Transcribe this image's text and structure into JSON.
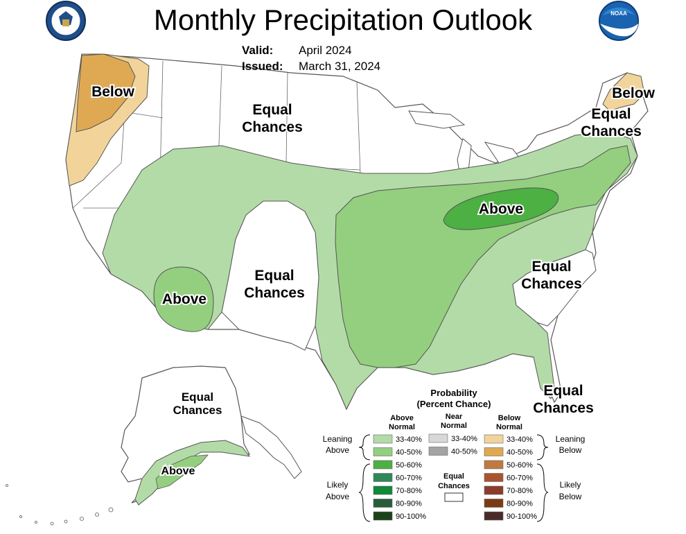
{
  "title": "Monthly Precipitation Outlook",
  "valid_label": "Valid:",
  "valid_value": "April 2024",
  "issued_label": "Issued:",
  "issued_value": "March 31, 2024",
  "logos": {
    "left": "department-of-commerce-seal",
    "right": "noaa-logo",
    "right_text": "NOAA"
  },
  "map_labels": {
    "pnw_below": "Below",
    "north_equal_1": "Equal",
    "north_equal_2": "Chances",
    "maine_below": "Below",
    "ne_equal_1": "Equal",
    "ne_equal_2": "Chances",
    "ohio_above": "Above",
    "sw_above": "Above",
    "central_equal_1": "Equal",
    "central_equal_2": "Chances",
    "se_equal_1": "Equal",
    "se_equal_2": "Chances",
    "fl_equal_1": "Equal",
    "fl_equal_2": "Chances",
    "ak_equal_1": "Equal",
    "ak_equal_2": "Chances",
    "ak_above": "Above"
  },
  "legend": {
    "title_1": "Probability",
    "title_2": "(Percent Chance)",
    "above_header_1": "Above",
    "above_header_2": "Normal",
    "near_header_1": "Near",
    "near_header_2": "Normal",
    "below_header_1": "Below",
    "below_header_2": "Normal",
    "leaning_above_1": "Leaning",
    "leaning_above_2": "Above",
    "leaning_below_1": "Leaning",
    "leaning_below_2": "Below",
    "likely_above_1": "Likely",
    "likely_above_2": "Above",
    "likely_below_1": "Likely",
    "likely_below_2": "Below",
    "equal_1": "Equal",
    "equal_2": "Chances",
    "above_rows": [
      {
        "label": "33-40%",
        "color": "#b3dba7"
      },
      {
        "label": "40-50%",
        "color": "#94cf7f"
      },
      {
        "label": "50-60%",
        "color": "#4cb043"
      },
      {
        "label": "60-70%",
        "color": "#2f8857"
      },
      {
        "label": "70-80%",
        "color": "#108939"
      },
      {
        "label": "80-90%",
        "color": "#285c3a"
      },
      {
        "label": "90-100%",
        "color": "#1b4118"
      }
    ],
    "near_rows": [
      {
        "label": "33-40%",
        "color": "#d8d8d8"
      },
      {
        "label": "40-50%",
        "color": "#a4a4a4"
      }
    ],
    "below_rows": [
      {
        "label": "33-40%",
        "color": "#f2d49b"
      },
      {
        "label": "40-50%",
        "color": "#dfa954"
      },
      {
        "label": "50-60%",
        "color": "#bf7a3f"
      },
      {
        "label": "60-70%",
        "color": "#a8552f"
      },
      {
        "label": "70-80%",
        "color": "#8c3c2c"
      },
      {
        "label": "80-90%",
        "color": "#7a3b12"
      },
      {
        "label": "90-100%",
        "color": "#4a2a28"
      }
    ],
    "equal_color": "#ffffff"
  }
}
